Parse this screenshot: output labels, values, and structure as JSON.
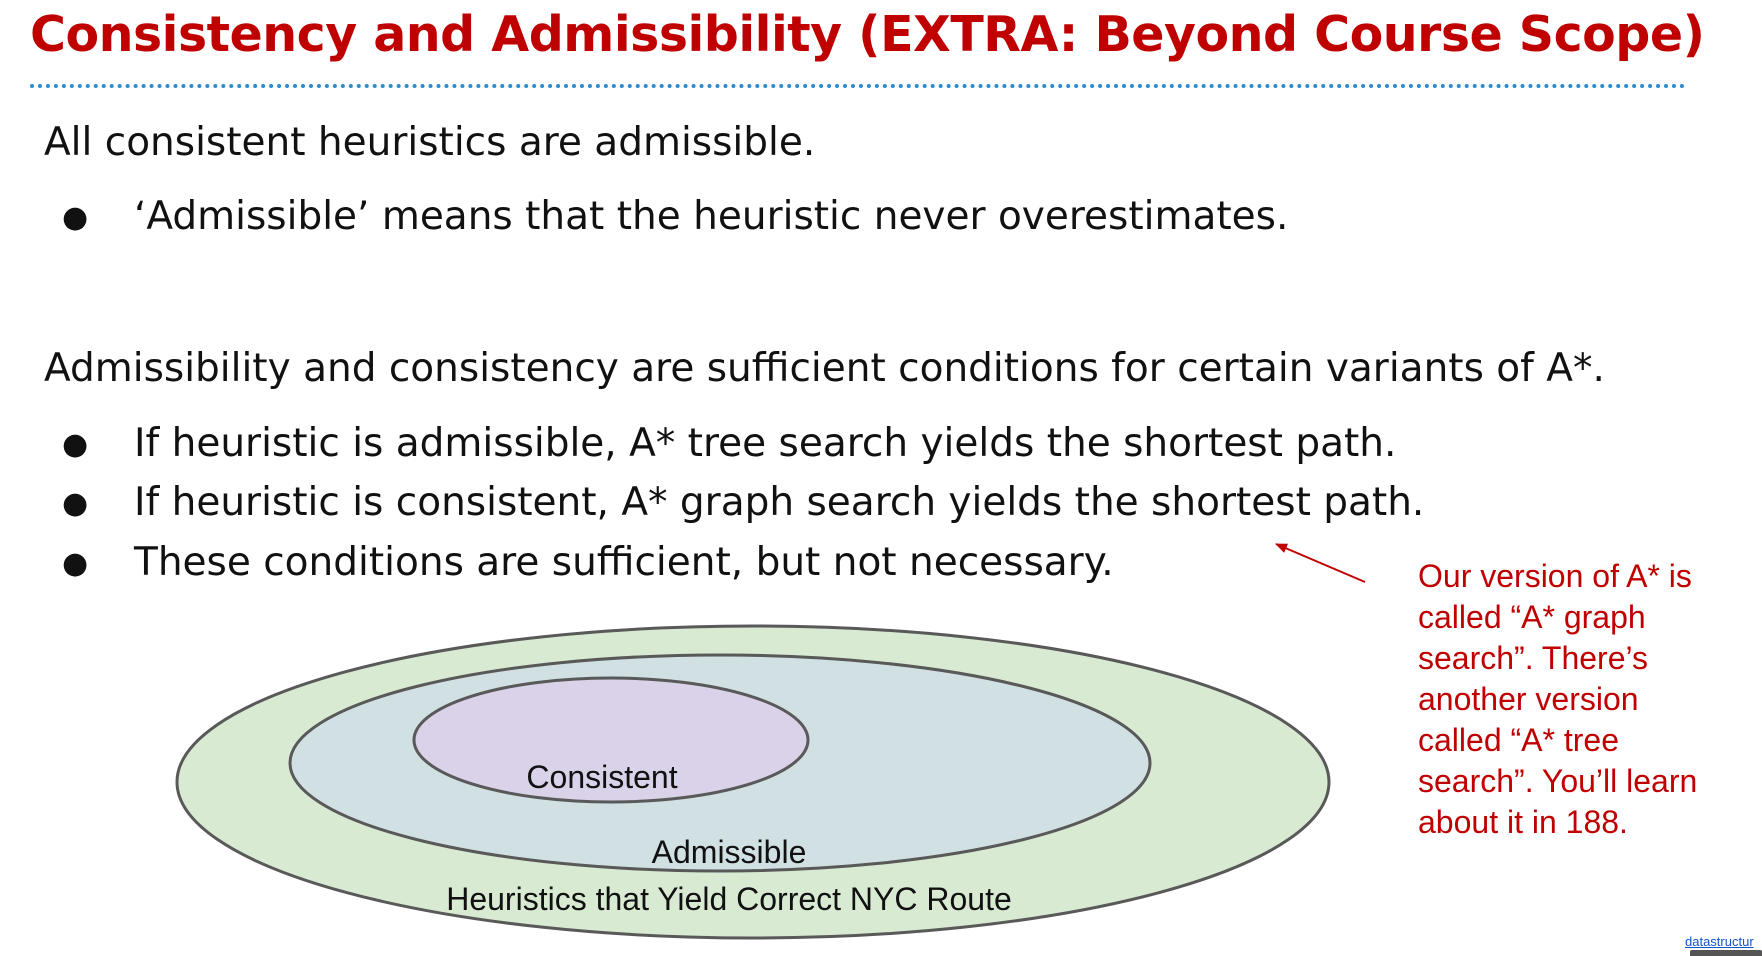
{
  "slide": {
    "title": "Consistency and Admissibility (EXTRA: Beyond Course Scope)",
    "para1": "All consistent heuristics are admissible.",
    "bullets1": [
      "‘Admissible’ means that the heuristic never overestimates."
    ],
    "para2": "Admissibility and consistency are sufficient conditions for certain variants of A*.",
    "bullets2": [
      "If heuristic is admissible, A* tree search yields the shortest path.",
      "If heuristic is consistent, A* graph search yields the shortest path.",
      "These conditions are sufficient, but not necessary."
    ],
    "bullet_glyph": "●"
  },
  "diagram": {
    "outer_label": "Heuristics that Yield Correct NYC Route",
    "middle_label": "Admissible",
    "inner_label": "Consistent",
    "colors": {
      "outer_fill": "#d9ead3",
      "middle_fill": "#d0e0e3",
      "inner_fill": "#d9d2e9",
      "stroke": "#595959"
    }
  },
  "annotation": {
    "lines": [
      "Our version of A* is",
      "called “A* graph",
      "search”. There’s",
      "another version",
      "called “A* tree",
      "search”. You’ll learn",
      "about it in 188."
    ],
    "color": "#c00000"
  },
  "footer": {
    "link_text": "datastructur"
  }
}
